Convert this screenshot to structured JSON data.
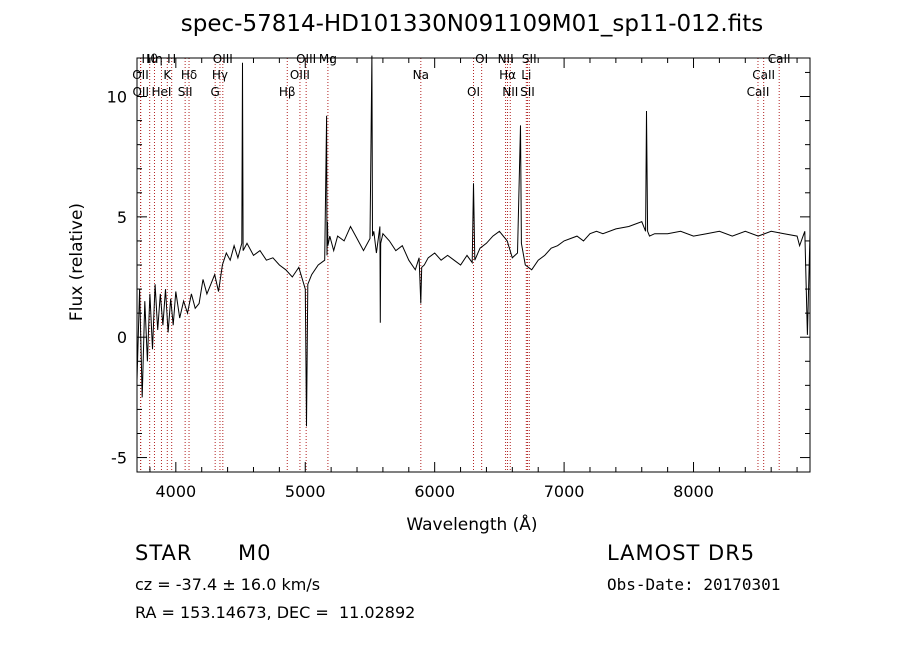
{
  "chart_data": {
    "type": "line",
    "title": "spec-57814-HD101330N091109M01_sp11-012.fits",
    "xlabel": "Wavelength (Å)",
    "ylabel": "Flux (relative)",
    "xlim": [
      3700,
      8900
    ],
    "ylim": [
      -5.6,
      11.6
    ],
    "xticks": [
      4000,
      5000,
      6000,
      7000,
      8000
    ],
    "yticks": [
      -5,
      0,
      5,
      10
    ],
    "grid": false,
    "series": [
      {
        "x": [
          3700,
          3720,
          3740,
          3760,
          3780,
          3800,
          3820,
          3840,
          3860,
          3880,
          3900,
          3920,
          3940,
          3960,
          3980,
          4000,
          4030,
          4060,
          4090,
          4120,
          4150,
          4180,
          4210,
          4240,
          4270,
          4300,
          4330,
          4360,
          4390,
          4420,
          4450,
          4480,
          4510,
          4515,
          4520,
          4550,
          4600,
          4650,
          4700,
          4750,
          4800,
          4850,
          4900,
          4950,
          5000,
          5010,
          5020,
          5050,
          5100,
          5150,
          5165,
          5168,
          5172,
          5175,
          5190,
          5220,
          5250,
          5300,
          5350,
          5400,
          5450,
          5500,
          5515,
          5520,
          5530,
          5550,
          5577,
          5580,
          5583,
          5600,
          5650,
          5700,
          5750,
          5800,
          5850,
          5880,
          5893,
          5900,
          5920,
          5950,
          6000,
          6050,
          6100,
          6150,
          6200,
          6250,
          6290,
          6300,
          6310,
          6350,
          6400,
          6450,
          6500,
          6560,
          6600,
          6640,
          6663,
          6670,
          6700,
          6750,
          6800,
          6850,
          6900,
          6950,
          7000,
          7050,
          7100,
          7150,
          7200,
          7250,
          7300,
          7400,
          7500,
          7600,
          7630,
          7637,
          7645,
          7660,
          7700,
          7800,
          7900,
          8000,
          8100,
          8200,
          8300,
          8400,
          8500,
          8600,
          8700,
          8800,
          8820,
          8860,
          8880,
          8900
        ],
        "y": [
          -1.8,
          2.0,
          -2.5,
          1.5,
          -1.0,
          1.8,
          -0.5,
          2.2,
          0.3,
          1.8,
          0.5,
          2.0,
          0.2,
          1.6,
          0.5,
          1.9,
          0.8,
          1.5,
          1.0,
          1.8,
          1.2,
          1.4,
          2.4,
          1.8,
          2.2,
          2.6,
          1.9,
          3.0,
          3.5,
          3.2,
          3.8,
          3.3,
          3.9,
          11.4,
          3.6,
          3.9,
          3.4,
          3.6,
          3.2,
          3.3,
          3.0,
          2.8,
          2.5,
          2.9,
          2.0,
          -3.7,
          2.2,
          2.6,
          3.0,
          3.2,
          9.2,
          3.4,
          4.8,
          3.8,
          4.2,
          3.6,
          4.2,
          4.0,
          4.6,
          4.1,
          3.6,
          4.1,
          11.7,
          4.2,
          4.4,
          3.5,
          4.6,
          0.6,
          3.9,
          4.3,
          4.0,
          3.6,
          3.8,
          3.2,
          2.8,
          3.3,
          1.4,
          2.9,
          3.0,
          3.3,
          3.5,
          3.2,
          3.4,
          3.2,
          3.0,
          3.4,
          3.1,
          6.4,
          3.2,
          3.7,
          3.9,
          4.2,
          4.4,
          4.0,
          3.3,
          3.5,
          8.8,
          3.9,
          3.0,
          2.8,
          3.2,
          3.4,
          3.7,
          3.8,
          4.0,
          4.1,
          4.2,
          4.0,
          4.3,
          4.4,
          4.3,
          4.5,
          4.6,
          4.8,
          4.4,
          9.4,
          4.4,
          4.2,
          4.3,
          4.3,
          4.4,
          4.2,
          4.3,
          4.4,
          4.2,
          4.4,
          4.2,
          4.4,
          4.3,
          4.2,
          3.8,
          4.4,
          0.1,
          4.3
        ]
      }
    ],
    "lines": [
      {
        "label": "Hθ",
        "x": 3798
      },
      {
        "label": "OII",
        "x": 3727
      },
      {
        "label": "OII",
        "x": 3729
      },
      {
        "label": "Hη",
        "x": 3835
      },
      {
        "label": "K",
        "x": 3934
      },
      {
        "label": "HeI",
        "x": 3889
      },
      {
        "label": "H",
        "x": 3968
      },
      {
        "label": "Hδ",
        "x": 4102
      },
      {
        "label": "SII",
        "x": 4072
      },
      {
        "label": "OIII",
        "x": 4363
      },
      {
        "label": "Hγ",
        "x": 4341
      },
      {
        "label": "G",
        "x": 4304
      },
      {
        "label": "OIII",
        "x": 5007
      },
      {
        "label": "OIII",
        "x": 4959
      },
      {
        "label": "Hβ",
        "x": 4861
      },
      {
        "label": "Mg",
        "x": 5175
      },
      {
        "label": "Na",
        "x": 5893
      },
      {
        "label": "OI",
        "x": 6300
      },
      {
        "label": "OI",
        "x": 6363
      },
      {
        "label": "Hα",
        "x": 6563
      },
      {
        "label": "SII",
        "x": 6717
      },
      {
        "label": "NII",
        "x": 6548
      },
      {
        "label": "Li",
        "x": 6708
      },
      {
        "label": "NII",
        "x": 6584
      },
      {
        "label": "SII",
        "x": 6731
      },
      {
        "label": "CaII",
        "x": 8542
      },
      {
        "label": "CaII",
        "x": 8498
      },
      {
        "label": "CaII",
        "x": 8662
      }
    ]
  },
  "info": {
    "obj_class": "STAR",
    "subclass": "M0",
    "survey": "LAMOST DR5",
    "cz": "cz = -37.4 ± 16.0 km/s",
    "obs_date": "Obs-Date: 20170301",
    "coords": "RA = 153.14673, DEC =  11.02892"
  }
}
